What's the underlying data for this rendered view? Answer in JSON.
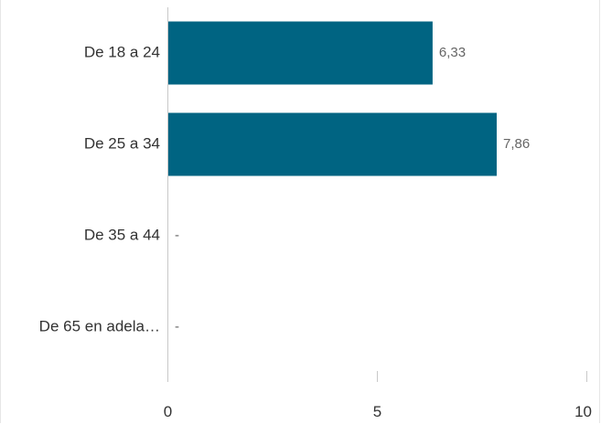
{
  "chart_data": {
    "type": "bar",
    "orientation": "horizontal",
    "categories": [
      "De 18 a 24",
      "De 25 a 34",
      "De 35 a 44",
      "De 65 en adela…"
    ],
    "values": [
      6.33,
      7.86,
      null,
      null
    ],
    "value_labels": [
      "6,33",
      "7,86",
      "-",
      "-"
    ],
    "xlim": [
      0,
      10
    ],
    "x_ticks": [
      0,
      5,
      10
    ],
    "x_tick_labels": [
      "0",
      "5",
      "10"
    ],
    "bar_color": "#006482",
    "grid": false,
    "legend": "none"
  }
}
